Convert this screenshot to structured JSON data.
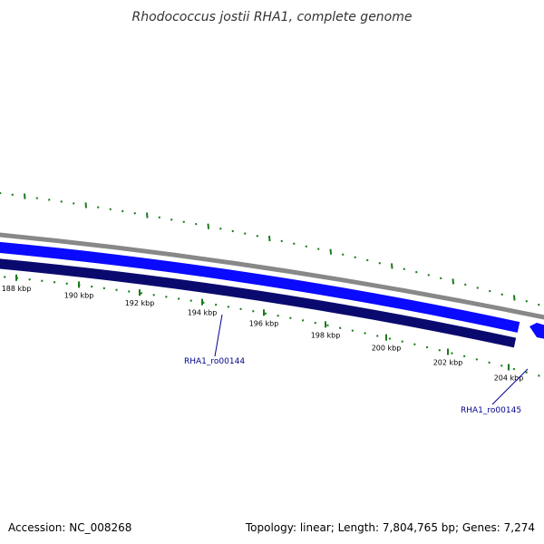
{
  "title": "Rhodococcus jostii RHA1, complete genome",
  "accession_text": "Accession: NC_008268",
  "summary_text": "Topology: linear; Length: 7,804,765 bp; Genes: 7,274",
  "colors": {
    "backbone": "#888888",
    "forward_gene": "#0a0aff",
    "reverse_gene": "#0a0a6e",
    "minor_ticks": "#1a7a1a",
    "gene_label": "#00008b"
  },
  "scale_ticks": [
    "188 kbp",
    "190 kbp",
    "192 kbp",
    "194 kbp",
    "196 kbp",
    "198 kbp",
    "200 kbp",
    "202 kbp",
    "204 kbp"
  ],
  "gene_labels": [
    "RHA1_ro00144",
    "RHA1_ro00145"
  ]
}
